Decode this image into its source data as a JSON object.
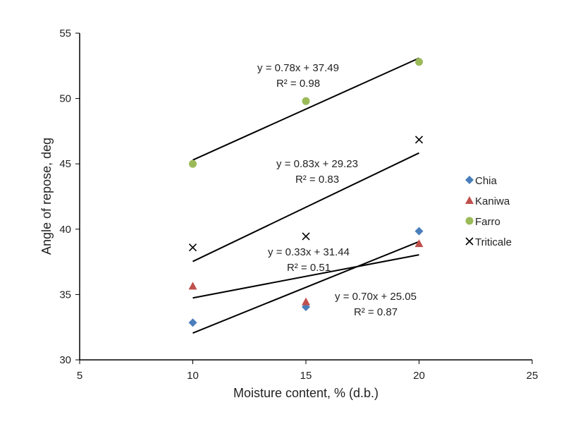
{
  "chart_data": {
    "type": "scatter",
    "title": "",
    "xlabel": "Moisture content, % (d.b.)",
    "ylabel": "Angle of repose, deg",
    "xlim": [
      5,
      25
    ],
    "ylim": [
      30,
      55
    ],
    "xticks": [
      5,
      10,
      15,
      20,
      25
    ],
    "yticks": [
      30,
      35,
      40,
      45,
      50,
      55
    ],
    "grid": false,
    "legend_position": "right",
    "series": [
      {
        "name": "Chia",
        "marker": "diamond",
        "color": "#4a7ebb",
        "x": [
          10,
          15,
          20
        ],
        "y": [
          32.85,
          34.05,
          39.85
        ],
        "trend": {
          "slope": 0.7,
          "intercept": 25.05,
          "equation": "y = 0.70x + 25.05",
          "r2": "R² = 0.87"
        }
      },
      {
        "name": "Kaniwa",
        "marker": "triangle",
        "color": "#c0504d",
        "x": [
          10,
          15,
          20
        ],
        "y": [
          35.65,
          34.45,
          38.9
        ],
        "trend": {
          "slope": 0.33,
          "intercept": 31.44,
          "equation": "y = 0.33x + 31.44",
          "r2": "R² = 0.51"
        }
      },
      {
        "name": "Farro",
        "marker": "circle",
        "color": "#9bbb59",
        "x": [
          10,
          15,
          20
        ],
        "y": [
          45.0,
          49.8,
          52.8
        ],
        "trend": {
          "slope": 0.78,
          "intercept": 37.49,
          "equation": "y = 0.78x + 37.49",
          "r2": "R² = 0.98"
        }
      },
      {
        "name": "Triticale",
        "marker": "x",
        "color": "#000000",
        "x": [
          10,
          15,
          20
        ],
        "y": [
          38.6,
          39.45,
          46.85
        ],
        "trend": {
          "slope": 0.83,
          "intercept": 29.23,
          "equation": "y = 0.83x + 29.23",
          "r2": "R² = 0.83"
        }
      }
    ]
  }
}
